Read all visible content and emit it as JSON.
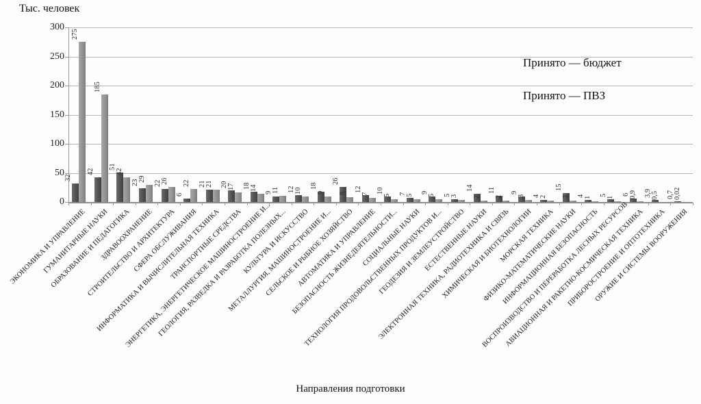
{
  "chart_data": {
    "type": "bar",
    "title": "Тыс. человек",
    "xlabel": "Направления подготовки",
    "ylabel": "Тыс. человек",
    "ylim": [
      0,
      300
    ],
    "yticks": [
      0,
      50,
      100,
      150,
      200,
      250,
      300
    ],
    "grid": true,
    "legend_position": "inside-top-right",
    "grid_color": "#b5b5b5",
    "axis_color": "#8c8c8c",
    "categories": [
      "ЭКОНОМИКА И УПРАВЛЕНИЕ",
      "ГУМАНИТАРНЫЕ НАУКИ",
      "ОБРАЗОВАНИЕ И ПЕДАГОГИКА",
      "ЗДРАВООХРАНЕНИЕ",
      "СТРОИТЕЛЬСТВО И АРХИТЕКТУРА",
      "СФЕРА ОБСЛУЖИВАНИЯ",
      "ИНФОРМАТИКА И ВЫЧИСЛИТЕЛЬНАЯ ТЕХНИКА",
      "ТРАНСПОРТНЫЕ СРЕДСТВА",
      "ЭНЕРГЕТИКА, ЭНЕРГЕТИЧЕСКОЕ МАШИНОСТРОЕНИЕ И...",
      "ГЕОЛОГИЯ, РАЗВЕДКА И РАЗРАБОТКА ПОЛЕЗНЫХ...",
      "КУЛЬТУРА И ИСКУССТВО",
      "МЕТАЛЛУРГИЯ, МАШИНОСТРОЕНИЕ И...",
      "СЕЛЬСКОЕ И РЫБНОЕ ХОЗЯЙСТВО",
      "АВТОМАТИКА И УПРАВЛЕНИЕ",
      "БЕЗОПАСНОСТЬ ЖИЗНЕДЕЯТЕЛЬНОСТИ...",
      "СОЦИАЛЬНЫЕ НАУКИ",
      "ТЕХНОЛОГИЯ ПРОДОВОЛЬСТВЕННЫХ ПРОДУКТОВ И...",
      "ГЕОДЕЗИЯ И ЗЕМЛЕУСТРОЙСТВО",
      "ЕСТЕСТВЕННЫЕ НАУКИ",
      "ЭЛЕКТРОННАЯ ТЕХНИКА, РАДИОТЕХНИКА И СВЯЗЬ",
      "ХИМИЧЕСКАЯ И БИОТЕХНОЛОГИИ",
      "МОРСКАЯ ТЕХНИКА",
      "ФИЗИКО-МАТЕМАТИЧЕСКИЕ НАУКИ",
      "ИНФОРМАЦИОННАЯ БЕЗОПАСНОСТЬ",
      "ВОСПРОИЗВОДСТВО И ПЕРЕРАБОТКА ЛЕСНЫХ РЕСУРСОВ",
      "АВИАЦИОННАЯ И РАКЕТНО-КОСМИЧЕСКАЯ ТЕХНИКА",
      "ПРИБОРОСТРОЕНИЕ И ОПТОТЕХНИКА",
      "ОРУЖИЕ И СИСТЕМЫ ВООРУЖЕНИЯ"
    ],
    "series": [
      {
        "name": "Принято — бюджет",
        "color": "#525252",
        "values": [
          32,
          42,
          51,
          23,
          22,
          6,
          21,
          20,
          18,
          9,
          12,
          18,
          26,
          12,
          10,
          7,
          9,
          5,
          14,
          11,
          9,
          4,
          15,
          4,
          5,
          6,
          3.9,
          0.7
        ],
        "labels": [
          "32",
          "42",
          "51",
          "23",
          "22",
          "6",
          "21",
          "20",
          "18",
          "9",
          "12",
          "18",
          "26",
          "12",
          "10",
          "7",
          "9",
          "5",
          "14",
          "11",
          "9",
          "4",
          "15",
          "4",
          "5",
          "6",
          "3,9",
          "0,7"
        ]
      },
      {
        "name": "Принято — ПВЗ",
        "color": "#939393",
        "values": [
          275,
          185,
          42,
          29,
          26,
          22,
          21,
          17,
          14,
          11,
          10,
          9,
          8,
          7,
          5,
          5,
          5,
          3,
          2,
          2,
          3,
          2,
          2,
          1,
          1,
          0.9,
          0.5,
          0.02
        ],
        "labels": [
          "275",
          "185",
          "42",
          "29",
          "26",
          "22",
          "21",
          "17",
          "14",
          "11",
          "10",
          "9",
          "8",
          "7",
          "5",
          "5",
          "5",
          "3",
          "2",
          "2",
          "3",
          "2",
          "2",
          "1",
          "1",
          "0,9",
          "0,5",
          "0,02"
        ]
      }
    ]
  }
}
